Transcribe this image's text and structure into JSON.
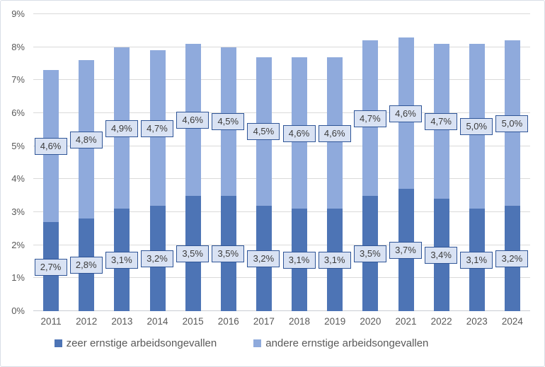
{
  "chart_data": {
    "type": "bar",
    "stacked": true,
    "title": "",
    "xlabel": "",
    "ylabel": "",
    "categories": [
      "2011",
      "2012",
      "2013",
      "2014",
      "2015",
      "2016",
      "2017",
      "2018",
      "2019",
      "2020",
      "2021",
      "2022",
      "2023",
      "2024"
    ],
    "series": [
      {
        "name": "zeer ernstige arbeidsongevallen",
        "color": "#4D74B5",
        "values": [
          2.7,
          2.8,
          3.1,
          3.2,
          3.5,
          3.5,
          3.2,
          3.1,
          3.1,
          3.5,
          3.7,
          3.4,
          3.1,
          3.2
        ],
        "labels": [
          "2,7%",
          "2,8%",
          "3,1%",
          "3,2%",
          "3,5%",
          "3,5%",
          "3,2%",
          "3,1%",
          "3,1%",
          "3,5%",
          "3,7%",
          "3,4%",
          "3,1%",
          "3,2%"
        ]
      },
      {
        "name": "andere ernstige arbeidsongevallen",
        "color": "#8FAADC",
        "values": [
          4.6,
          4.8,
          4.9,
          4.7,
          4.6,
          4.5,
          4.5,
          4.6,
          4.6,
          4.7,
          4.6,
          4.7,
          5.0,
          5.0
        ],
        "labels": [
          "4,6%",
          "4,8%",
          "4,9%",
          "4,7%",
          "4,6%",
          "4,5%",
          "4,5%",
          "4,6%",
          "4,6%",
          "4,7%",
          "4,6%",
          "4,7%",
          "5,0%",
          "5,0%"
        ]
      }
    ],
    "ylim": [
      0,
      9
    ],
    "ytick_labels": [
      "0%",
      "1%",
      "2%",
      "3%",
      "4%",
      "5%",
      "6%",
      "7%",
      "8%",
      "9%"
    ],
    "grid": true,
    "legend_position": "bottom",
    "data_label_style": {
      "fill": "#D9E2F3",
      "border": "#2F5597",
      "text_color": "#3B3B3B"
    },
    "axis_style": {
      "text_color": "#595959",
      "gridline_color": "#DADADA",
      "axisline_color": "#C9CDD3"
    },
    "frame_style": {
      "border": "#D9DEE7",
      "background": "#FFFFFF"
    }
  }
}
